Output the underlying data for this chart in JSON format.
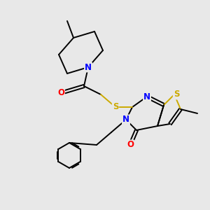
{
  "background_color": "#e8e8e8",
  "atom_colors": {
    "N": "#0000ff",
    "O": "#ff0000",
    "S": "#ccaa00"
  },
  "bond_color": "#000000",
  "figsize": [
    3.0,
    3.0
  ],
  "dpi": 100
}
